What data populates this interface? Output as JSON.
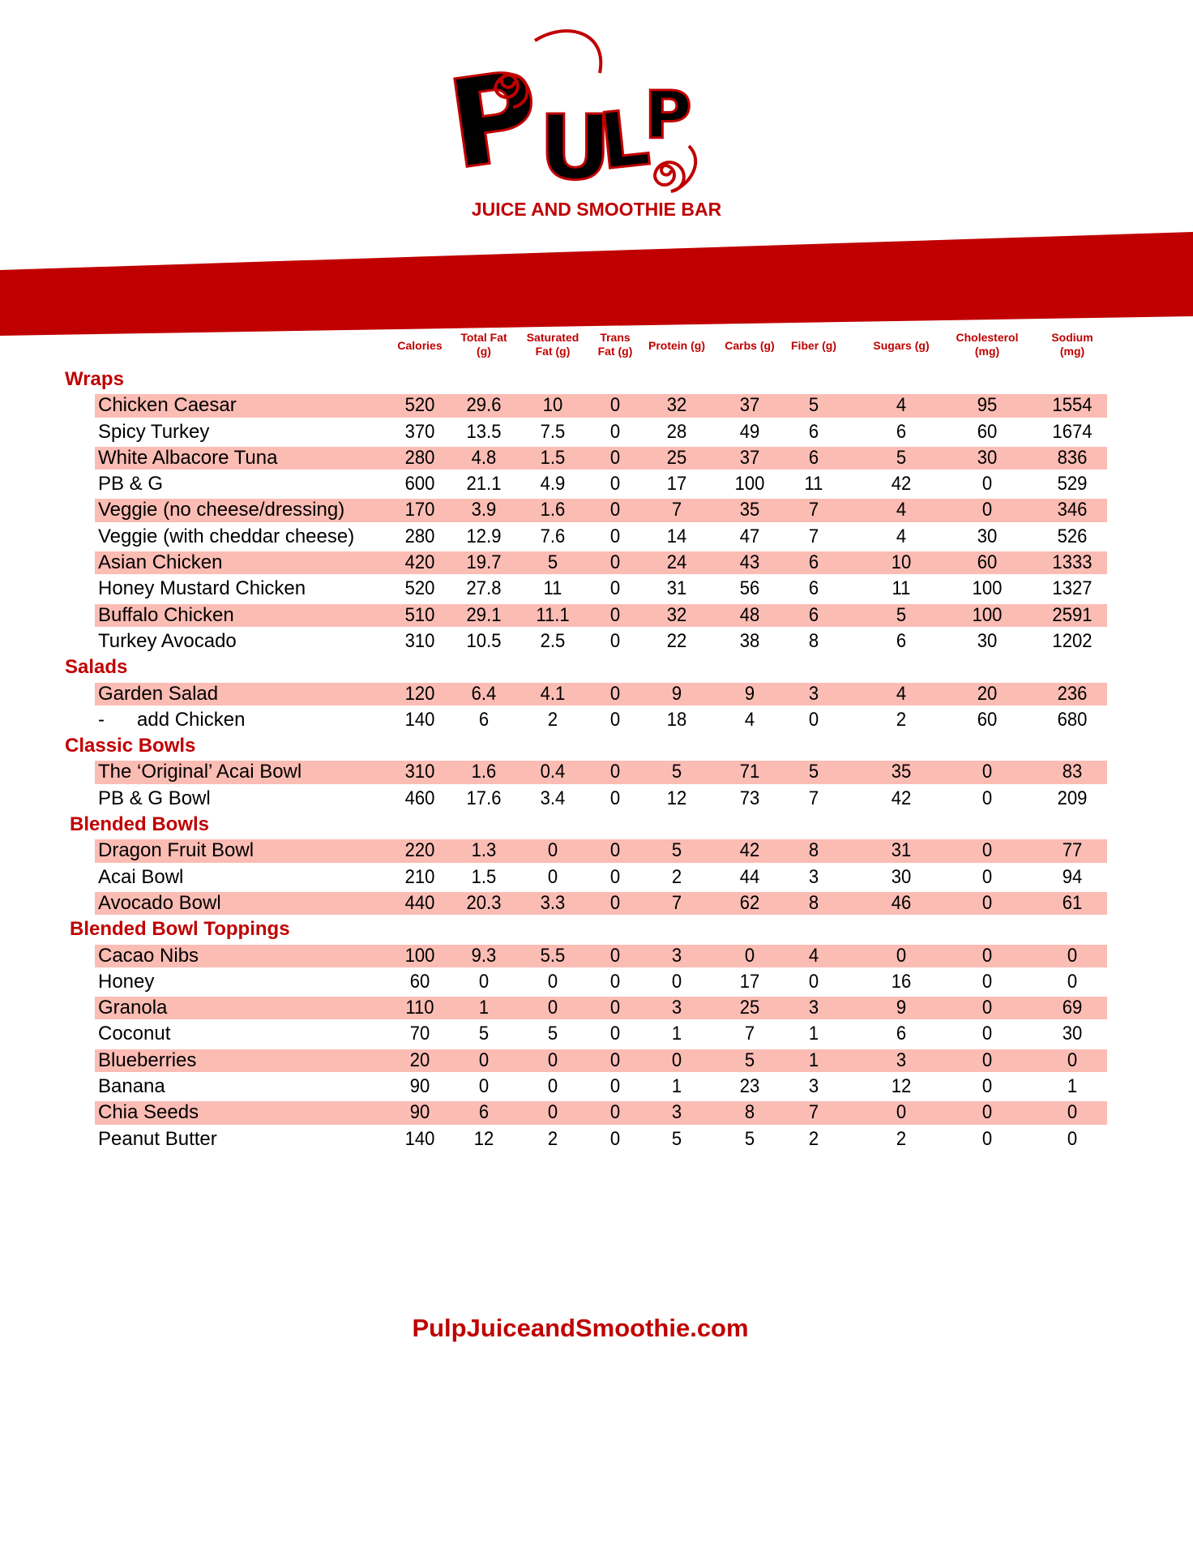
{
  "brand": {
    "logo_text": "PULP",
    "subtitle": "JUICE AND SMOOTHIE BAR",
    "colors": {
      "red": "#c00000",
      "row_highlight": "#fbbcb4"
    }
  },
  "columns": [
    "Calories",
    "Total Fat (g)",
    "Saturated Fat (g)",
    "Trans Fat (g)",
    "Protein (g)",
    "Carbs (g)",
    "Fiber (g)",
    "Sugars (g)",
    "Cholesterol (mg)",
    "Sodium (mg)"
  ],
  "column_lines": [
    [
      "Calories"
    ],
    [
      "Total Fat",
      "(g)"
    ],
    [
      "Saturated",
      "Fat (g)"
    ],
    [
      "Trans",
      "Fat (g)"
    ],
    [
      "Protein (g)"
    ],
    [
      "Carbs (g)"
    ],
    [
      "Fiber (g)"
    ],
    [
      "Sugars (g)"
    ],
    [
      "Cholesterol",
      "(mg)"
    ],
    [
      "Sodium",
      "(mg)"
    ]
  ],
  "sections": [
    {
      "title": "Wraps",
      "items": [
        {
          "name": "Chicken Caesar",
          "values": [
            "520",
            "29.6",
            "10",
            "0",
            "32",
            "37",
            "5",
            "4",
            "95",
            "1554"
          ]
        },
        {
          "name": "Spicy Turkey",
          "values": [
            "370",
            "13.5",
            "7.5",
            "0",
            "28",
            "49",
            "6",
            "6",
            "60",
            "1674"
          ]
        },
        {
          "name": "White Albacore Tuna",
          "values": [
            "280",
            "4.8",
            "1.5",
            "0",
            "25",
            "37",
            "6",
            "5",
            "30",
            "836"
          ]
        },
        {
          "name": "PB & G",
          "values": [
            "600",
            "21.1",
            "4.9",
            "0",
            "17",
            "100",
            "11",
            "42",
            "0",
            "529"
          ]
        },
        {
          "name": "Veggie (no cheese/dressing)",
          "values": [
            "170",
            "3.9",
            "1.6",
            "0",
            "7",
            "35",
            "7",
            "4",
            "0",
            "346"
          ]
        },
        {
          "name": "Veggie (with cheddar cheese)",
          "values": [
            "280",
            "12.9",
            "7.6",
            "0",
            "14",
            "47",
            "7",
            "4",
            "30",
            "526"
          ]
        },
        {
          "name": "Asian Chicken",
          "values": [
            "420",
            "19.7",
            "5",
            "0",
            "24",
            "43",
            "6",
            "10",
            "60",
            "1333"
          ]
        },
        {
          "name": "Honey Mustard Chicken",
          "values": [
            "520",
            "27.8",
            "11",
            "0",
            "31",
            "56",
            "6",
            "11",
            "100",
            "1327"
          ]
        },
        {
          "name": "Buffalo Chicken",
          "values": [
            "510",
            "29.1",
            "11.1",
            "0",
            "32",
            "48",
            "6",
            "5",
            "100",
            "2591"
          ]
        },
        {
          "name": "Turkey Avocado",
          "values": [
            "310",
            "10.5",
            "2.5",
            "0",
            "22",
            "38",
            "8",
            "6",
            "30",
            "1202"
          ]
        }
      ]
    },
    {
      "title": "Salads",
      "items": [
        {
          "name": "Garden Salad",
          "values": [
            "120",
            "6.4",
            "4.1",
            "0",
            "9",
            "9",
            "3",
            "4",
            "20",
            "236"
          ]
        },
        {
          "name": "-      add Chicken",
          "values": [
            "140",
            "6",
            "2",
            "0",
            "18",
            "4",
            "0",
            "2",
            "60",
            "680"
          ]
        }
      ]
    },
    {
      "title": "Classic Bowls",
      "items": [
        {
          "name": "The ‘Original’ Acai Bowl",
          "values": [
            "310",
            "1.6",
            "0.4",
            "0",
            "5",
            "71",
            "5",
            "35",
            "0",
            "83"
          ]
        },
        {
          "name": "PB & G Bowl",
          "values": [
            "460",
            "17.6",
            "3.4",
            "0",
            "12",
            "73",
            "7",
            "42",
            "0",
            "209"
          ]
        }
      ]
    },
    {
      "title": "Blended Bowls",
      "items": [
        {
          "name": "Dragon Fruit Bowl",
          "values": [
            "220",
            "1.3",
            "0",
            "0",
            "5",
            "42",
            "8",
            "31",
            "0",
            "77"
          ]
        },
        {
          "name": "Acai Bowl",
          "values": [
            "210",
            "1.5",
            "0",
            "0",
            "2",
            "44",
            "3",
            "30",
            "0",
            "94"
          ]
        },
        {
          "name": "Avocado Bowl",
          "values": [
            "440",
            "20.3",
            "3.3",
            "0",
            "7",
            "62",
            "8",
            "46",
            "0",
            "61"
          ]
        }
      ]
    },
    {
      "title": "Blended Bowl Toppings",
      "items": [
        {
          "name": "Cacao Nibs",
          "values": [
            "100",
            "9.3",
            "5.5",
            "0",
            "3",
            "0",
            "4",
            "0",
            "0",
            "0"
          ]
        },
        {
          "name": "Honey",
          "values": [
            "60",
            "0",
            "0",
            "0",
            "0",
            "17",
            "0",
            "16",
            "0",
            "0"
          ]
        },
        {
          "name": "Granola",
          "values": [
            "110",
            "1",
            "0",
            "0",
            "3",
            "25",
            "3",
            "9",
            "0",
            "69"
          ]
        },
        {
          "name": "Coconut",
          "values": [
            "70",
            "5",
            "5",
            "0",
            "1",
            "7",
            "1",
            "6",
            "0",
            "30"
          ]
        },
        {
          "name": "Blueberries",
          "values": [
            "20",
            "0",
            "0",
            "0",
            "0",
            "5",
            "1",
            "3",
            "0",
            "0"
          ]
        },
        {
          "name": "Banana",
          "values": [
            "90",
            "0",
            "0",
            "0",
            "1",
            "23",
            "3",
            "12",
            "0",
            "1"
          ]
        },
        {
          "name": "Chia Seeds",
          "values": [
            "90",
            "6",
            "0",
            "0",
            "3",
            "8",
            "7",
            "0",
            "0",
            "0"
          ]
        },
        {
          "name": "Peanut Butter",
          "values": [
            "140",
            "12",
            "2",
            "0",
            "5",
            "5",
            "2",
            "2",
            "0",
            "0"
          ]
        }
      ]
    }
  ],
  "footer": {
    "url": "PulpJuiceandSmoothie.com"
  }
}
